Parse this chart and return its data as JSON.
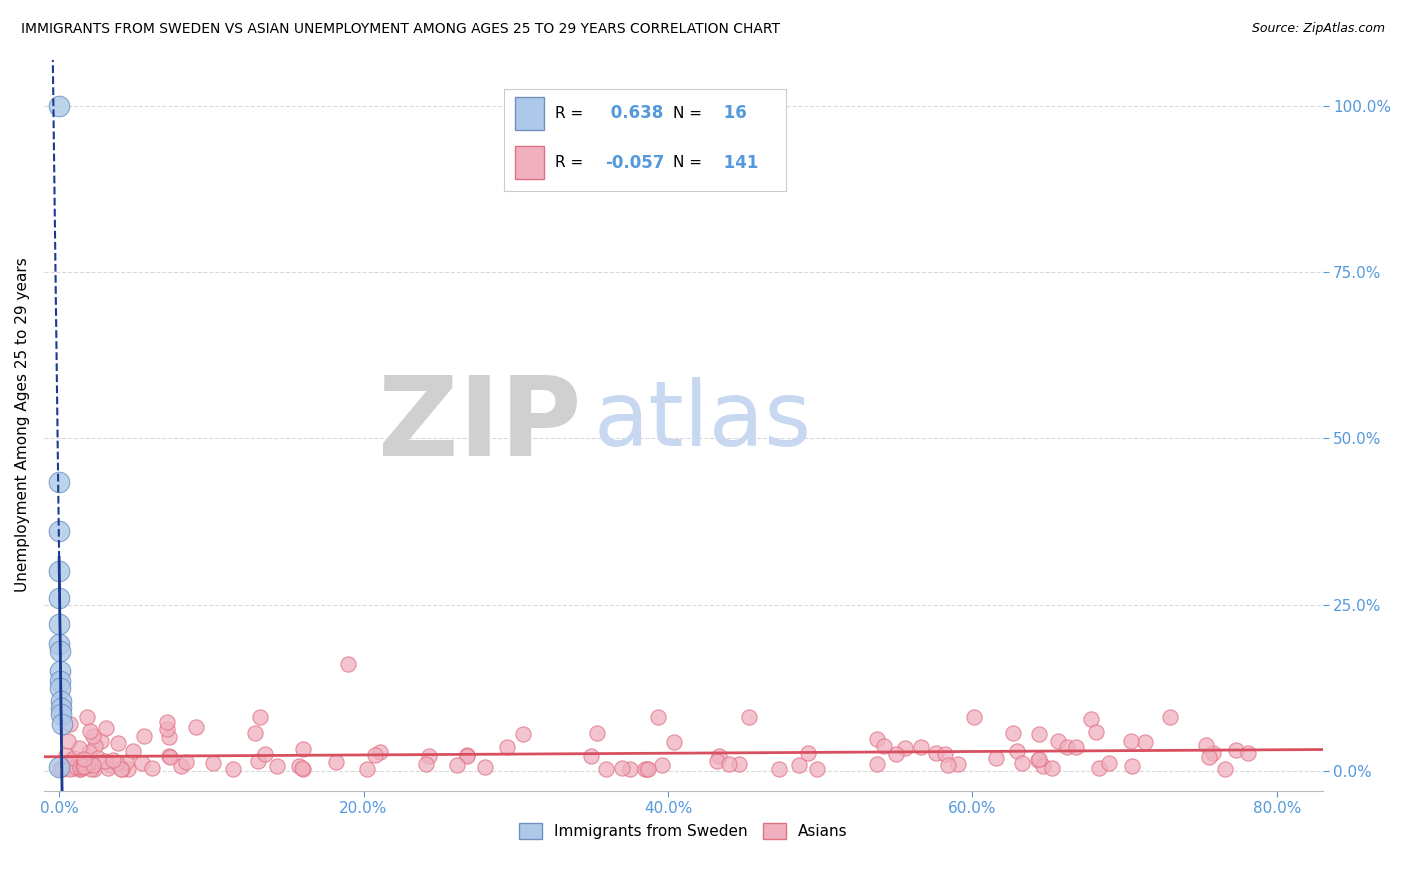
{
  "title": "IMMIGRANTS FROM SWEDEN VS ASIAN UNEMPLOYMENT AMONG AGES 25 TO 29 YEARS CORRELATION CHART",
  "source": "Source: ZipAtlas.com",
  "xlabel_vals": [
    0.0,
    20.0,
    40.0,
    60.0,
    80.0
  ],
  "ylabel_vals": [
    0.0,
    25.0,
    50.0,
    75.0,
    100.0
  ],
  "xlim": [
    -1.0,
    83
  ],
  "ylim": [
    -3,
    107
  ],
  "watermark_zip_text": "ZIP",
  "watermark_atlas_text": "atlas",
  "watermark_zip_color": "#d0d0d0",
  "watermark_atlas_color": "#c8d8f0",
  "sweden_color": "#adc8e8",
  "sweden_edge_color": "#7090c0",
  "asians_color": "#f0b0c0",
  "asians_edge_color": "#e07080",
  "sweden_line_color": "#1a3a90",
  "asians_line_color": "#d85060",
  "R_sweden": 0.638,
  "N_sweden": 16,
  "R_asians": -0.057,
  "N_asians": 141,
  "legend_label_sweden": "Immigrants from Sweden",
  "legend_label_asians": "Asians",
  "ylabel": "Unemployment Among Ages 25 to 29 years",
  "grid_color": "#c0c0c0",
  "tick_color": "#5599dd",
  "sweden_x": [
    0.0,
    0.0,
    0.0,
    0.0,
    0.0,
    0.0,
    0.0,
    0.04,
    0.04,
    0.07,
    0.08,
    0.1,
    0.12,
    0.15,
    0.18,
    0.0
  ],
  "sweden_y": [
    100.0,
    36.0,
    30.0,
    26.0,
    22.0,
    19.0,
    43.5,
    18.0,
    15.0,
    13.5,
    12.5,
    10.5,
    9.5,
    8.5,
    7.0,
    0.5
  ]
}
